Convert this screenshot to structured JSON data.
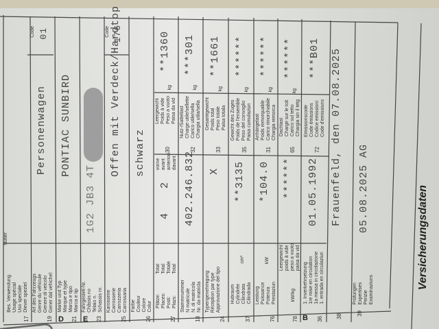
{
  "document": {
    "section_letters": [
      "D",
      "E",
      "B"
    ],
    "rows": [
      {
        "num": "17",
        "label": "Bes. Verwendung\nUsage spécial\nUso speciale\nDiever speziel",
        "value": ""
      },
      {
        "num": "19",
        "label": "Art des Fahrzeugs\nGenre du véhicule\nGenere di veicolo\nGener dal vehichel",
        "value": "Personenwagen",
        "code_label": "Code",
        "code": "01"
      },
      {
        "num": "21",
        "label": "Marke und Typ\nMarque et type\nMarca e tipo\nMarca e tip",
        "value": "PONTIAC SUNBIRD"
      },
      {
        "num": "23",
        "label": "Fahrgestell-Nr.\nChâssis no\nTelaio n.\nSchassis nr.",
        "value": "1G2 JB3 4T"
      },
      {
        "num": "25",
        "label": "Karosserie\nCarrosserie\nCarrozzeria\nCarrossaria",
        "value": "Offen mit Verdeck/Hardtop",
        "code_label": "Code",
        "code": "176"
      },
      {
        "num": "26",
        "label": "Farbe\nCouleur\nColore\nColur",
        "value": "schwarz"
      },
      {
        "num": "27",
        "label": "Plätze:\nPlaces:\nPosti:\nPlazs:",
        "label2": "Total\nTotal\nTotale\nTotal",
        "value": "4",
        "label3": "vorne\navant\nanteriori\ndavant",
        "value2": "2"
      },
      {
        "num": "18",
        "label": "Stammnummer\nN matricule\nN. di matricola\nNr. da matricla",
        "value": "402.246.832"
      },
      {
        "num": "24",
        "label": "Typengenehmigung\nRéception par type\nApprovazione del tipo",
        "value": "X"
      },
      {
        "num": "37",
        "label": "Hubraum\nCylindrée\nCilindrata\nCilindrada",
        "unit": "cm³",
        "value": "**3135"
      },
      {
        "num": "76",
        "label": "Leistung\nPuissance\nPotenza\nPrestaziun",
        "unit": "kW",
        "value": "*104.0"
      },
      {
        "num": "78",
        "label": "kW/kg",
        "label2": "Leergewicht\npoids à vide\npeso a vuoto\npaisa da vid",
        "value": "******"
      },
      {
        "num": "36",
        "label": "1. Inverkehrsetzung\n1re mise en circulation\n1a messa in circolazione\n1. entrada en circulaziun",
        "value": "01.05.1992"
      },
      {
        "num": "38",
        "label": "",
        "value": "Frauenfeld, den 07.08.2025"
      },
      {
        "num": "39",
        "label": "Prüfungen\nExpertises\nPerizie\nExaminaziuns",
        "value": "05.08.2025 AG"
      }
    ],
    "right_rows": [
      {
        "num": "30",
        "label": "Leergewicht\nPoids à vide\nPeso a vuoto\nPaisa da vid",
        "unit": "kg",
        "value": "**1360"
      },
      {
        "num": "32",
        "label": "Nutz-/Sattellast\nCharge utile/sellette\nCarico utile/sella\nChargia utila/sella",
        "unit": "kg",
        "value": "***301"
      },
      {
        "num": "33",
        "label": "Gesamtgewicht\nPoids total\nPeso totale\nPaisa totala",
        "unit": "kg",
        "value": "**1661"
      },
      {
        "num": "35",
        "label": "Gewicht des Zuges\nPoids de l'ensemble\nPeso del convoglio\nPaisa cumulaziun",
        "unit": "kg",
        "value": "******"
      },
      {
        "num": "31",
        "label": "Anhängelast\nPoids remorquable\nCarico rimorchiabile\nChargia remorca",
        "unit": "kg",
        "value": "******"
      },
      {
        "num": "65",
        "label": "Dachlast\nCharge sur le toit\nCarico sul tetto\nChargia sin il tetg",
        "unit": "kg",
        "value": "******"
      },
      {
        "num": "72",
        "label": "Emissionscode\nCode émissions\nCodice emissioni\nCode d'emissiuns",
        "value": "***B01"
      }
    ],
    "top_label": "Nutier",
    "footer_title": "Versicherungsdaten"
  }
}
